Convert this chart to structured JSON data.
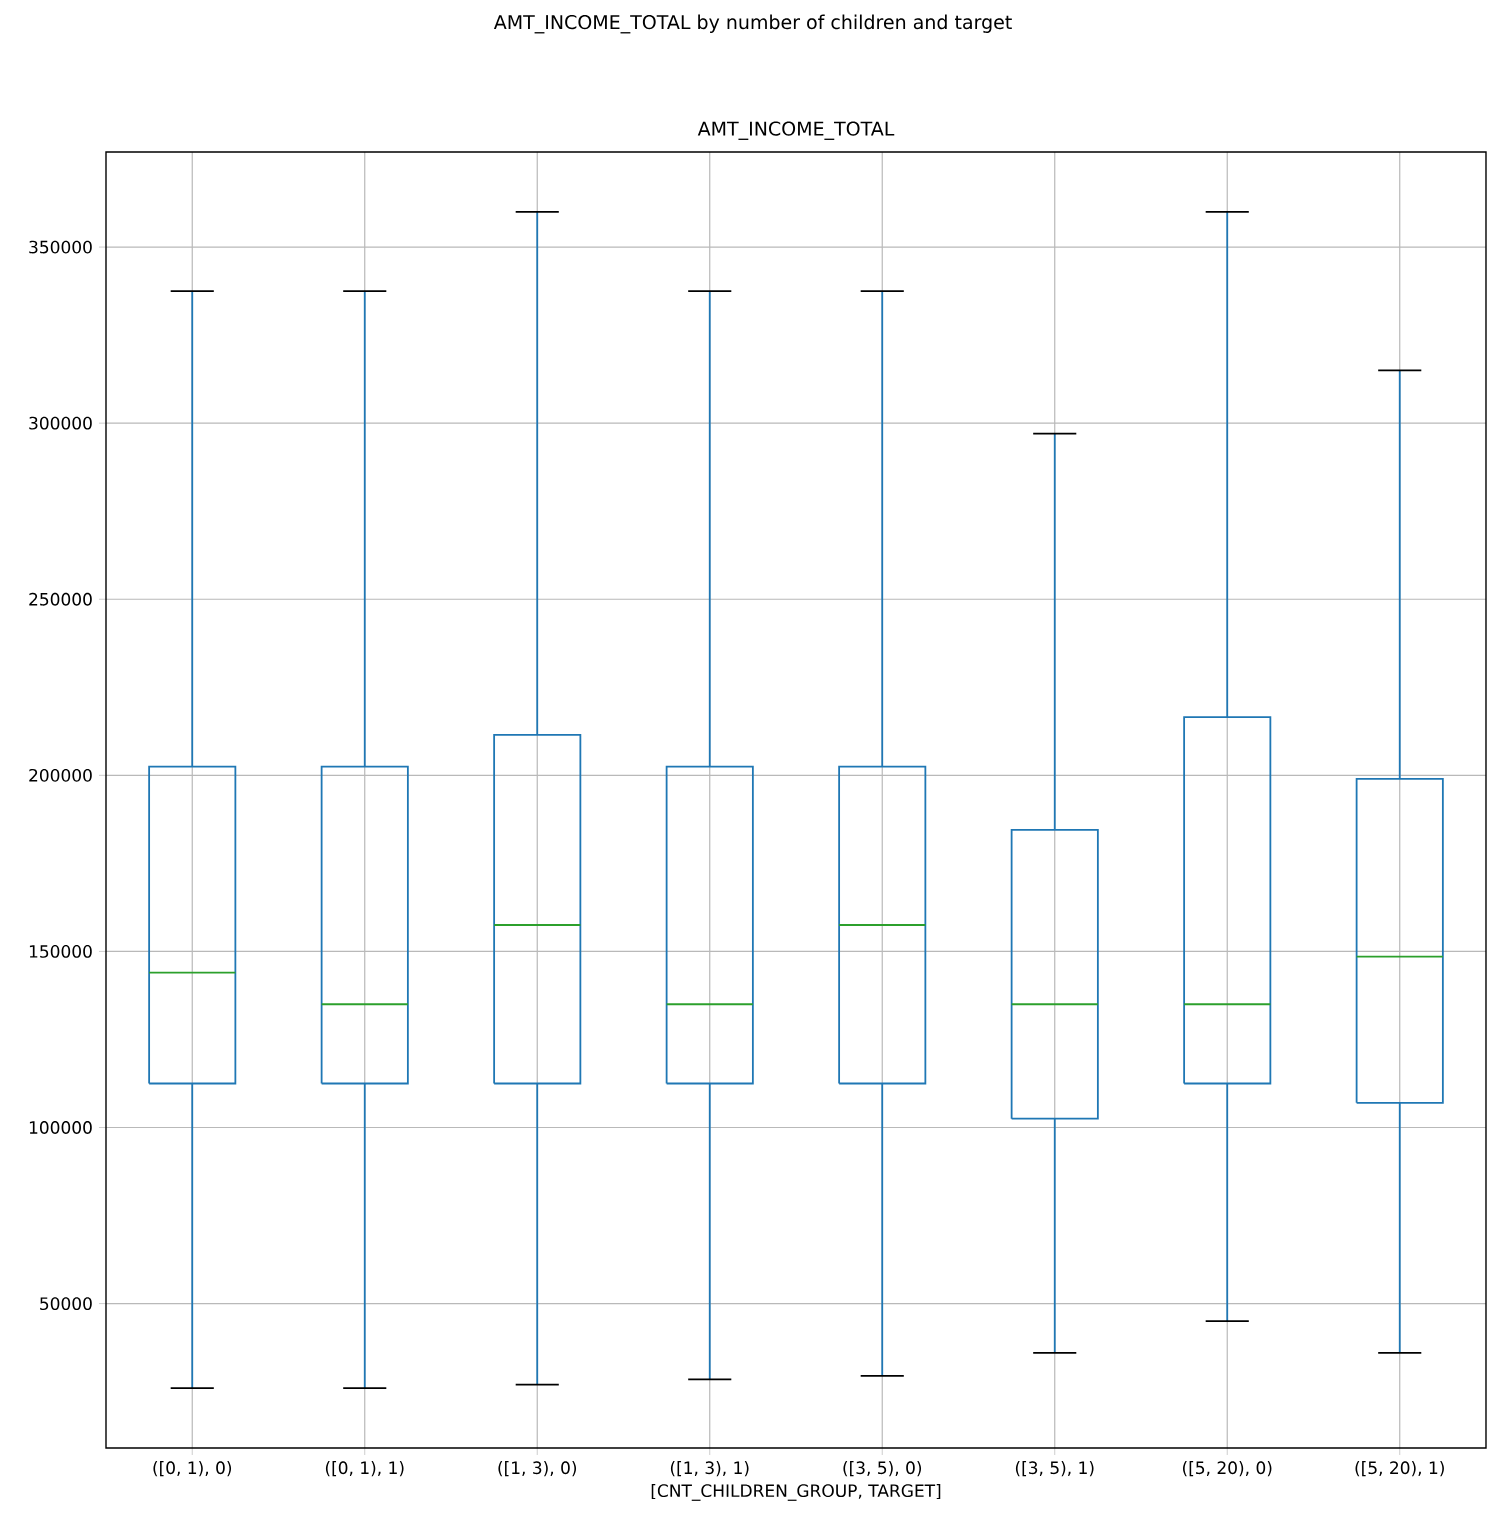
{
  "chart_data": {
    "type": "box",
    "title": "AMT_INCOME_TOTAL by number of children and target",
    "subtitle": "AMT_INCOME_TOTAL",
    "xlabel": "[CNT_CHILDREN_GROUP, TARGET]",
    "categories": [
      "([0, 1), 0)",
      "([0, 1), 1)",
      "([1, 3), 0)",
      "([1, 3), 1)",
      "([3, 5), 0)",
      "([3, 5), 1)",
      "([5, 20), 0)",
      "([5, 20), 1)"
    ],
    "boxes": [
      {
        "low": 26000,
        "q1": 112500,
        "median": 144000,
        "q3": 202500,
        "high": 337500
      },
      {
        "low": 26000,
        "q1": 112500,
        "median": 135000,
        "q3": 202500,
        "high": 337500
      },
      {
        "low": 27000,
        "q1": 112500,
        "median": 157500,
        "q3": 211500,
        "high": 360000
      },
      {
        "low": 28500,
        "q1": 112500,
        "median": 135000,
        "q3": 202500,
        "high": 337500
      },
      {
        "low": 29500,
        "q1": 112500,
        "median": 157500,
        "q3": 202500,
        "high": 337500
      },
      {
        "low": 36000,
        "q1": 102500,
        "median": 135000,
        "q3": 184500,
        "high": 297000
      },
      {
        "low": 45000,
        "q1": 112500,
        "median": 135000,
        "q3": 216500,
        "high": 360000
      },
      {
        "low": 36000,
        "q1": 107000,
        "median": 148500,
        "q3": 199000,
        "high": 315000
      }
    ],
    "color": "#1f77b4",
    "ylim": [
      9000,
      377000
    ],
    "yticks": [
      50000,
      100000,
      150000,
      200000,
      250000,
      300000,
      350000
    ],
    "grid": true
  }
}
